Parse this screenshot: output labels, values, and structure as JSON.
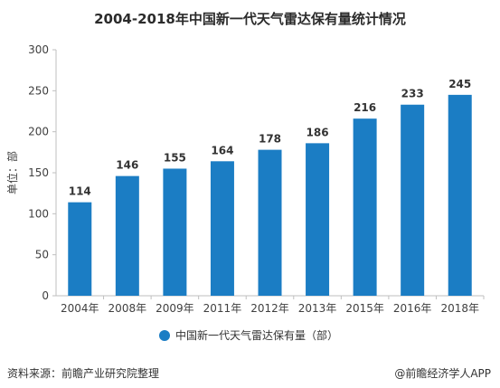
{
  "title": "2004-2018年中国新一代天气雷达保有量统计情况",
  "source": "资料来源：前瞻产业研究院整理",
  "credit": "@前瞻经济学人APP",
  "colors": {
    "bar": "#1B7DC4",
    "axis": "#bfbfbf",
    "text": "#404040"
  },
  "chart_data": {
    "type": "bar",
    "title": "2004-2018年中国新一代天气雷达保有量统计情况",
    "categories": [
      "2004年",
      "2008年",
      "2009年",
      "2011年",
      "2012年",
      "2013年",
      "2015年",
      "2016年",
      "2018年"
    ],
    "series": [
      {
        "name": "中国新一代天气雷达保有量（部）",
        "values": [
          114,
          146,
          155,
          164,
          178,
          186,
          216,
          233,
          245
        ]
      }
    ],
    "ylabel": "单位：部",
    "xlabel": "",
    "ylim": [
      0,
      300
    ],
    "yticks": [
      0,
      50,
      100,
      150,
      200,
      250,
      300
    ],
    "grid": false,
    "data_labels": true,
    "legend_position": "bottom"
  }
}
